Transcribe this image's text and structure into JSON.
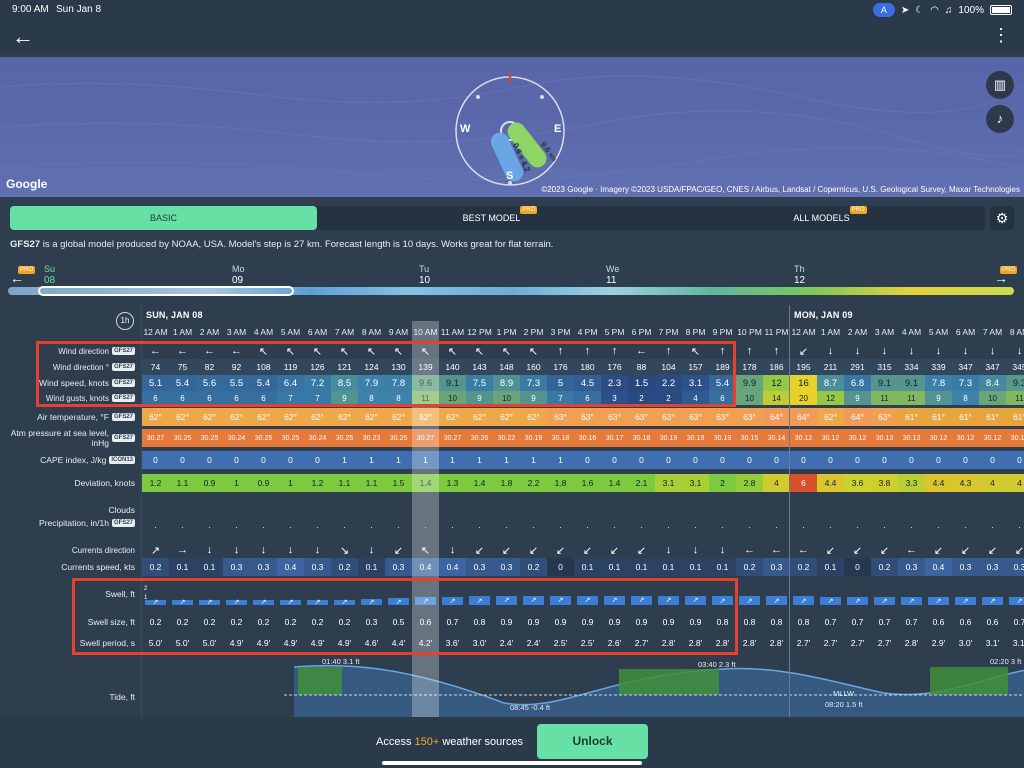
{
  "status": {
    "time": "9:00 AM",
    "date": "Sun Jan 8",
    "battery": "100%",
    "nav_badge": "A"
  },
  "map": {
    "google_label": "Google",
    "credit": "©2023 Google · Imagery ©2023 USDA/FPAC/GEO, CNES / Airbus, Landsat / Copernicus, U.S. Geological Survey, Maxar Technologies",
    "compass": {
      "n": "N",
      "e": "E",
      "s": "S",
      "w": "W",
      "wind_value": "9.6",
      "wind_unit": "kts",
      "swell_value": "0.6",
      "swell_unit": "ft",
      "swell_period": "4.2"
    }
  },
  "tabs": {
    "basic": "BASIC",
    "best_model": "BEST MODEL",
    "all_models": "ALL MODELS",
    "pro_badge": "PRO"
  },
  "description": {
    "model": "GFS27",
    "text": " is a global model produced by NOAA, USA. Model's step is 27 km. Forecast length is 10 days. Works great for flat terrain."
  },
  "days_nav": {
    "pro_badge": "PRO",
    "days": [
      {
        "name": "Su",
        "num": "08"
      },
      {
        "name": "Mo",
        "num": "09"
      },
      {
        "name": "Tu",
        "num": "10"
      },
      {
        "name": "We",
        "num": "11"
      },
      {
        "name": "Th",
        "num": "12"
      }
    ]
  },
  "table": {
    "step_label": "1h",
    "day1_label": "SUN, JAN 08",
    "day2_label": "MON, JAN 09",
    "hours": [
      "12 AM",
      "1 AM",
      "2 AM",
      "3 AM",
      "4 AM",
      "5 AM",
      "6 AM",
      "7 AM",
      "8 AM",
      "9 AM",
      "10 AM",
      "11 AM",
      "12 PM",
      "1 PM",
      "2 PM",
      "3 PM",
      "4 PM",
      "5 PM",
      "6 PM",
      "7 PM",
      "8 PM",
      "9 PM",
      "10 PM",
      "11 PM",
      "12 AM",
      "1 AM",
      "2 AM",
      "3 AM",
      "4 AM",
      "5 AM",
      "6 AM",
      "7 AM",
      "8 AM"
    ],
    "labels": {
      "wind_dir_arrow": "Wind direction",
      "wind_dir_deg": "Wind direction °",
      "wind_speed": "Wind speed, knots",
      "wind_gusts": "Wind gusts, knots",
      "air_temp": "Air temperature, °F",
      "pressure": "Atm pressure at sea level, inHg",
      "cape": "CAPE index, J/kg",
      "deviation": "Deviation, knots",
      "clouds": "Clouds",
      "precip": "Precipitation, in/1h",
      "currents_dir": "Currents direction",
      "currents_speed": "Currents speed, kts",
      "swell": "Swell, ft",
      "swell_size": "Swell size, ft",
      "swell_period": "Swell period, s",
      "tide": "Tide, ft",
      "model_tag": "GFS27",
      "cape_tag": "ICON13"
    },
    "wind_arrows": [
      "←",
      "←",
      "←",
      "←",
      "↖",
      "↖",
      "↖",
      "↖",
      "↖",
      "↖",
      "↖",
      "↖",
      "↖",
      "↖",
      "↖",
      "↑",
      "↑",
      "↑",
      "←",
      "↑",
      "↖",
      "↑",
      "↑",
      "↑",
      "↙",
      "↓",
      "↓",
      "↓",
      "↓",
      "↓",
      "↓",
      "↓",
      "↓"
    ],
    "wind_dir": [
      "74",
      "75",
      "82",
      "92",
      "108",
      "119",
      "126",
      "121",
      "124",
      "130",
      "139",
      "140",
      "143",
      "148",
      "160",
      "176",
      "180",
      "176",
      "88",
      "104",
      "157",
      "189",
      "178",
      "186",
      "195",
      "211",
      "291",
      "315",
      "334",
      "339",
      "347",
      "347",
      "345"
    ],
    "wind_speed": [
      "5.1",
      "5.4",
      "5.6",
      "5.5",
      "5.4",
      "6.4",
      "7.2",
      "8.5",
      "7.9",
      "7.8",
      "9.6",
      "9.1",
      "7.5",
      "8.9",
      "7.3",
      "5",
      "4.5",
      "2.3",
      "1.5",
      "2.2",
      "3.1",
      "5.4",
      "9.9",
      "12",
      "16",
      "8.7",
      "6.8",
      "9.1",
      "9.1",
      "7.8",
      "7.3",
      "8.4",
      "9.3"
    ],
    "wind_gusts": [
      "6",
      "6",
      "6",
      "6",
      "6",
      "7",
      "7",
      "9",
      "8",
      "8",
      "11",
      "10",
      "9",
      "10",
      "9",
      "7",
      "6",
      "3",
      "2",
      "2",
      "4",
      "6",
      "10",
      "14",
      "20",
      "12",
      "9",
      "11",
      "11",
      "9",
      "8",
      "10",
      "11"
    ],
    "air_temp": [
      "62°",
      "62°",
      "62°",
      "62°",
      "62°",
      "62°",
      "62°",
      "62°",
      "62°",
      "62°",
      "62°",
      "62°",
      "62°",
      "62°",
      "62°",
      "63°",
      "63°",
      "63°",
      "63°",
      "63°",
      "63°",
      "63°",
      "63°",
      "64°",
      "64°",
      "62°",
      "64°",
      "63°",
      "61°",
      "61°",
      "61°",
      "61°",
      "61°"
    ],
    "pressure": [
      "30.27",
      "30.25",
      "30.25",
      "30.24",
      "30.25",
      "30.25",
      "30.24",
      "30.25",
      "30.23",
      "30.25",
      "30.27",
      "30.27",
      "30.26",
      "30.22",
      "30.19",
      "30.18",
      "30.16",
      "30.17",
      "30.18",
      "30.19",
      "30.19",
      "30.19",
      "30.15",
      "30.14",
      "30.12",
      "30.12",
      "30.12",
      "30.13",
      "30.13",
      "30.12",
      "30.12",
      "30.12",
      "30.12"
    ],
    "cape": [
      "0",
      "0",
      "0",
      "0",
      "0",
      "0",
      "0",
      "1",
      "1",
      "1",
      "1",
      "1",
      "1",
      "1",
      "1",
      "1",
      "0",
      "0",
      "0",
      "0",
      "0",
      "0",
      "0",
      "0",
      "0",
      "0",
      "0",
      "0",
      "0",
      "0",
      "0",
      "0",
      "0"
    ],
    "deviation": [
      "1.2",
      "1.1",
      "0.9",
      "1",
      "0.9",
      "1",
      "1.2",
      "1.1",
      "1.1",
      "1.5",
      "1.4",
      "1.3",
      "1.4",
      "1.8",
      "2.2",
      "1.8",
      "1.6",
      "1.4",
      "2.1",
      "3.1",
      "3.1",
      "2",
      "2.8",
      "4",
      "6",
      "4.4",
      "3.6",
      "3.8",
      "3.3",
      "4.4",
      "4.3",
      "4",
      "4"
    ],
    "current_arrows": [
      "↗",
      "→",
      "↓",
      "↓",
      "↓",
      "↓",
      "↓",
      "↘",
      "↓",
      "↙",
      "↖",
      "↓",
      "↙",
      "↙",
      "↙",
      "↙",
      "↙",
      "↙",
      "↙",
      "↓",
      "↓",
      "↓",
      "←",
      "←",
      "←",
      "↙",
      "↙",
      "↙",
      "←",
      "↙",
      "↙",
      "↙",
      "↙"
    ],
    "currents_speed": [
      "0.2",
      "0.1",
      "0.1",
      "0.3",
      "0.3",
      "0.4",
      "0.3",
      "0.2",
      "0.1",
      "0.3",
      "0.4",
      "0.4",
      "0.3",
      "0.3",
      "0.2",
      "0",
      "0.1",
      "0.1",
      "0.1",
      "0.1",
      "0.1",
      "0.1",
      "0.2",
      "0.3",
      "0.2",
      "0.1",
      "0",
      "0.2",
      "0.3",
      "0.4",
      "0.3",
      "0.3",
      "0.3"
    ],
    "swell_scale_top": "2",
    "swell_scale_bottom": "1",
    "swell_size": [
      "0.2",
      "0.2",
      "0.2",
      "0.2",
      "0.2",
      "0.2",
      "0.2",
      "0.2",
      "0.3",
      "0.5",
      "0.6",
      "0.7",
      "0.8",
      "0.9",
      "0.9",
      "0.9",
      "0.9",
      "0.9",
      "0.9",
      "0.9",
      "0.9",
      "0.8",
      "0.8",
      "0.8",
      "0.8",
      "0.7",
      "0.7",
      "0.7",
      "0.7",
      "0.6",
      "0.6",
      "0.6",
      "0.7"
    ],
    "swell_period": [
      "5.0'",
      "5.0'",
      "5.0'",
      "4.9'",
      "4.9'",
      "4.9'",
      "4.9'",
      "4.9'",
      "4.6'",
      "4.4'",
      "4.2'",
      "3.6'",
      "3.0'",
      "2.4'",
      "2.4'",
      "2.5'",
      "2.5'",
      "2.6'",
      "2.7'",
      "2.8'",
      "2.8'",
      "2.8'",
      "2.8'",
      "2.8'",
      "2.7'",
      "2.7'",
      "2.7'",
      "2.7'",
      "2.8'",
      "2.9'",
      "3.0'",
      "3.1'",
      "3.1'"
    ],
    "tide_labels": {
      "hi1": "01:40 3.1 ft",
      "lo1": "08:45 -0.4 ft",
      "hi2": "03:40 2.3 ft",
      "lo2": "08:20 1.5 ft",
      "hi3": "02:20 3 ft",
      "mllw": "MLLW"
    }
  },
  "footer": {
    "prefix": "Access ",
    "highlight": "150+",
    "suffix": " weather sources",
    "unlock": "Unlock"
  }
}
